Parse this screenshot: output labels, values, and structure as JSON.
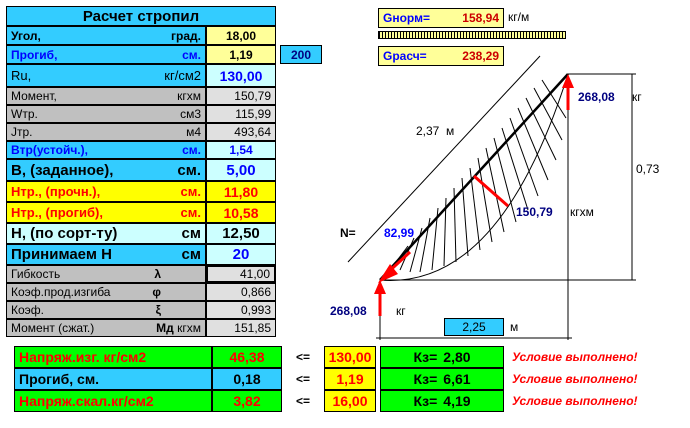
{
  "title": "Расчет стропил",
  "left_rows": [
    {
      "label": "Угол,",
      "unit": "град.",
      "value": "18,00"
    },
    {
      "label": "Прогиб,",
      "unit": "см.",
      "value": "1,19",
      "extra": "200"
    },
    {
      "label": "Ru,",
      "unit": "кг/см2",
      "value": "130,00"
    },
    {
      "label": "Момент,",
      "unit": "кгхм",
      "value": "150,79"
    },
    {
      "label": "Wтр.",
      "unit": "см3",
      "value": "115,99"
    },
    {
      "label": "Jтр.",
      "unit": "м4",
      "value": "493,64"
    },
    {
      "label": "Bтр(устойч.),",
      "unit": "см.",
      "value": "1,54"
    },
    {
      "label": "B, (заданное),",
      "unit": "см.",
      "value": "5,00"
    },
    {
      "label": "Hтр., (прочн.),",
      "unit": "см.",
      "value": "11,80"
    },
    {
      "label": "Hтр., (прогиб),",
      "unit": "см.",
      "value": "10,58"
    },
    {
      "label": "H, (по сорт-ту)",
      "unit": "см",
      "value": "12,50"
    },
    {
      "label": "Принимаем H",
      "unit": "см",
      "value": "20"
    },
    {
      "label": "Гибкость",
      "unit": "λ",
      "value": "41,00"
    },
    {
      "label": "Коэф.прод.изгиба",
      "unit": "φ",
      "value": "0,866"
    },
    {
      "label": "Коэф.",
      "unit": "ξ",
      "value": "0,993"
    },
    {
      "label": "Момент (сжат.)",
      "unit": "Mд",
      "unit2": "кгхм",
      "value": "151,85"
    }
  ],
  "loads": {
    "gnorm_label": "Gнорм=",
    "gnorm_value": "158,94",
    "gnorm_unit": "кг/м",
    "gcalc_label": "Gрасч=",
    "gcalc_value": "238,29"
  },
  "diagram": {
    "reaction_top": "268,08",
    "reaction_top_unit": "кг",
    "length": "2,37",
    "length_unit": "м",
    "height": "0,73",
    "moment": "150,79",
    "moment_unit": "кгхм",
    "n_label": "N=",
    "n_value": "82,99",
    "reaction_bottom": "268,08",
    "reaction_bottom_unit": "кг",
    "span": "2,25",
    "span_unit": "м"
  },
  "results": [
    {
      "label": "Напряж.изг.   кг/см2",
      "value": "46,38",
      "op": "<=",
      "limit": "130,00",
      "k_label": "Кз=",
      "k_value": "2,80",
      "status": "Условие выполнено!"
    },
    {
      "label": "Прогиб,              см.",
      "value": "0,18",
      "op": "<=",
      "limit": "1,19",
      "k_label": "Кз=",
      "k_value": "6,61",
      "status": "Условие выполнено!"
    },
    {
      "label": "Напряж.скал.кг/см2",
      "value": "3,82",
      "op": "<=",
      "limit": "16,00",
      "k_label": "Кз=",
      "k_value": "4,19",
      "status": "Условие выполнено!"
    }
  ],
  "colors": {
    "cyan": "#33ccff",
    "yellow": "#ffff00",
    "light_yellow": "#ffff99",
    "grey": "#c0c0c0",
    "pale_cyan": "#ccffff",
    "green": "#00ff00",
    "red": "#ff0000",
    "blue_text": "#0000ff",
    "pale_grey": "#e0e0e0"
  }
}
